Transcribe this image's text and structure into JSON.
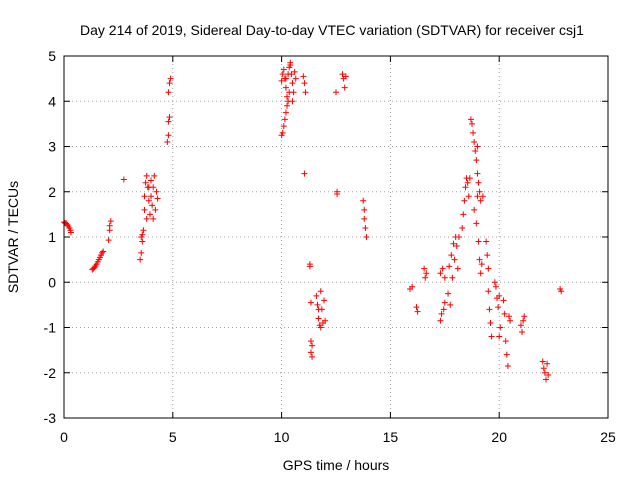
{
  "chart_data": {
    "type": "scatter",
    "title": "Day 214 of 2019, Sidereal Day-to-day VTEC variation (SDTVAR) for receiver csj1",
    "xlabel": "GPS time / hours",
    "ylabel": "SDTVAR / TECUs",
    "xlim": [
      0,
      25
    ],
    "ylim": [
      -3,
      5
    ],
    "xticks": [
      "0",
      "5",
      "10",
      "15",
      "20",
      "25"
    ],
    "yticks": [
      "-3",
      "-2",
      "-1",
      "0",
      "1",
      "2",
      "3",
      "4",
      "5"
    ],
    "grid": true,
    "marker": "+",
    "color": "#ff0000",
    "series": [
      {
        "name": "csj1",
        "points": [
          [
            0.0,
            1.33
          ],
          [
            0.05,
            1.31
          ],
          [
            0.1,
            1.3
          ],
          [
            0.15,
            1.27
          ],
          [
            0.2,
            1.24
          ],
          [
            0.25,
            1.2
          ],
          [
            0.3,
            1.15
          ],
          [
            0.32,
            1.1
          ],
          [
            1.3,
            0.28
          ],
          [
            1.35,
            0.3
          ],
          [
            1.4,
            0.33
          ],
          [
            1.45,
            0.36
          ],
          [
            1.5,
            0.4
          ],
          [
            1.55,
            0.45
          ],
          [
            1.6,
            0.5
          ],
          [
            1.65,
            0.55
          ],
          [
            1.7,
            0.6
          ],
          [
            1.75,
            0.65
          ],
          [
            1.8,
            0.68
          ],
          [
            2.05,
            0.93
          ],
          [
            2.1,
            1.15
          ],
          [
            2.1,
            1.25
          ],
          [
            2.15,
            1.35
          ],
          [
            2.75,
            2.27
          ],
          [
            3.5,
            0.5
          ],
          [
            3.55,
            0.65
          ],
          [
            3.6,
            0.9
          ],
          [
            3.6,
            1.05
          ],
          [
            3.65,
            1.15
          ],
          [
            3.55,
            1.0
          ],
          [
            3.7,
            1.6
          ],
          [
            3.7,
            1.9
          ],
          [
            3.75,
            2.2
          ],
          [
            3.8,
            2.35
          ],
          [
            3.85,
            2.1
          ],
          [
            3.9,
            1.8
          ],
          [
            3.95,
            1.5
          ],
          [
            4.0,
            1.9
          ],
          [
            4.0,
            2.25
          ],
          [
            4.05,
            1.7
          ],
          [
            4.1,
            1.4
          ],
          [
            4.1,
            2.1
          ],
          [
            4.15,
            2.35
          ],
          [
            4.2,
            1.6
          ],
          [
            4.25,
            2.0
          ],
          [
            4.3,
            1.85
          ],
          [
            3.8,
            1.4
          ],
          [
            3.9,
            2.1
          ],
          [
            4.75,
            3.1
          ],
          [
            4.8,
            3.25
          ],
          [
            4.8,
            3.55
          ],
          [
            4.85,
            3.65
          ],
          [
            4.8,
            4.2
          ],
          [
            4.85,
            4.4
          ],
          [
            4.9,
            4.5
          ],
          [
            10.0,
            3.25
          ],
          [
            10.05,
            3.3
          ],
          [
            10.1,
            3.45
          ],
          [
            10.15,
            3.6
          ],
          [
            10.2,
            3.75
          ],
          [
            10.25,
            3.9
          ],
          [
            10.3,
            4.0
          ],
          [
            10.35,
            4.2
          ],
          [
            10.0,
            4.45
          ],
          [
            10.05,
            4.6
          ],
          [
            10.1,
            4.7
          ],
          [
            10.15,
            4.5
          ],
          [
            10.2,
            4.3
          ],
          [
            10.25,
            4.1
          ],
          [
            10.3,
            4.6
          ],
          [
            10.35,
            4.75
          ],
          [
            10.4,
            4.8
          ],
          [
            10.45,
            4.6
          ],
          [
            10.5,
            4.4
          ],
          [
            10.55,
            4.2
          ],
          [
            10.5,
            4.0
          ],
          [
            10.6,
            4.65
          ],
          [
            10.65,
            4.5
          ],
          [
            10.4,
            4.85
          ],
          [
            10.2,
            4.5
          ],
          [
            11.0,
            4.55
          ],
          [
            11.05,
            4.4
          ],
          [
            11.1,
            4.2
          ],
          [
            11.05,
            2.4
          ],
          [
            11.3,
            0.35
          ],
          [
            11.3,
            0.4
          ],
          [
            11.35,
            -0.45
          ],
          [
            11.35,
            -1.3
          ],
          [
            11.35,
            -1.55
          ],
          [
            11.4,
            -1.65
          ],
          [
            11.4,
            -1.4
          ],
          [
            11.6,
            -0.3
          ],
          [
            11.65,
            -0.5
          ],
          [
            11.7,
            -0.8
          ],
          [
            11.75,
            -0.95
          ],
          [
            11.8,
            -0.2
          ],
          [
            11.85,
            -0.6
          ],
          [
            11.9,
            -0.9
          ],
          [
            11.95,
            -0.4
          ],
          [
            12.0,
            -0.85
          ],
          [
            11.7,
            -0.6
          ],
          [
            11.8,
            -1.0
          ],
          [
            12.5,
            4.2
          ],
          [
            12.55,
            2.0
          ],
          [
            12.55,
            1.95
          ],
          [
            12.8,
            4.6
          ],
          [
            12.85,
            4.5
          ],
          [
            12.9,
            4.3
          ],
          [
            12.95,
            4.55
          ],
          [
            13.75,
            1.8
          ],
          [
            13.8,
            1.6
          ],
          [
            13.8,
            1.4
          ],
          [
            13.85,
            1.2
          ],
          [
            13.9,
            1.0
          ],
          [
            15.9,
            -0.15
          ],
          [
            16.0,
            -0.1
          ],
          [
            16.2,
            -0.55
          ],
          [
            16.25,
            -0.65
          ],
          [
            16.55,
            0.3
          ],
          [
            16.6,
            0.1
          ],
          [
            16.65,
            0.2
          ],
          [
            17.3,
            0.2
          ],
          [
            17.3,
            -0.85
          ],
          [
            17.35,
            -0.7
          ],
          [
            17.4,
            0.3
          ],
          [
            17.45,
            -0.6
          ],
          [
            17.5,
            0.1
          ],
          [
            17.5,
            -0.45
          ],
          [
            17.65,
            -0.25
          ],
          [
            17.7,
            0.35
          ],
          [
            17.75,
            -0.5
          ],
          [
            17.8,
            0.6
          ],
          [
            17.85,
            0.1
          ],
          [
            17.9,
            0.85
          ],
          [
            17.95,
            0.5
          ],
          [
            18.0,
            1.0
          ],
          [
            18.05,
            0.8
          ],
          [
            18.1,
            0.3
          ],
          [
            18.15,
            1.0
          ],
          [
            18.3,
            1.2
          ],
          [
            18.35,
            1.5
          ],
          [
            18.4,
            1.8
          ],
          [
            18.45,
            2.1
          ],
          [
            18.5,
            2.3
          ],
          [
            18.55,
            2.2
          ],
          [
            18.6,
            1.9
          ],
          [
            18.65,
            2.3
          ],
          [
            18.7,
            3.6
          ],
          [
            18.75,
            3.5
          ],
          [
            18.8,
            3.3
          ],
          [
            18.85,
            3.1
          ],
          [
            18.9,
            2.9
          ],
          [
            18.95,
            2.7
          ],
          [
            19.0,
            2.4
          ],
          [
            19.05,
            2.2
          ],
          [
            19.1,
            2.0
          ],
          [
            19.15,
            1.8
          ],
          [
            19.0,
            3.0
          ],
          [
            18.85,
            1.6
          ],
          [
            18.95,
            1.3
          ],
          [
            19.05,
            0.9
          ],
          [
            19.1,
            0.5
          ],
          [
            19.15,
            0.2
          ],
          [
            19.2,
            0.4
          ],
          [
            19.25,
            1.9
          ],
          [
            19.0,
            1.9
          ],
          [
            19.4,
            0.9
          ],
          [
            19.45,
            0.6
          ],
          [
            19.5,
            0.3
          ],
          [
            19.55,
            -0.6
          ],
          [
            19.6,
            -0.9
          ],
          [
            19.65,
            -1.2
          ],
          [
            19.5,
            -0.2
          ],
          [
            19.8,
            0.0
          ],
          [
            19.85,
            -0.1
          ],
          [
            19.9,
            -0.35
          ],
          [
            19.95,
            -0.55
          ],
          [
            20.0,
            -0.3
          ],
          [
            20.05,
            -1.0
          ],
          [
            20.0,
            -1.2
          ],
          [
            20.2,
            -0.4
          ],
          [
            20.25,
            -0.7
          ],
          [
            20.3,
            -1.3
          ],
          [
            20.35,
            -1.6
          ],
          [
            20.4,
            -1.85
          ],
          [
            20.45,
            -0.75
          ],
          [
            20.5,
            -0.85
          ],
          [
            21.0,
            -0.95
          ],
          [
            21.05,
            -1.1
          ],
          [
            21.1,
            -0.85
          ],
          [
            21.15,
            -0.75
          ],
          [
            22.0,
            -1.75
          ],
          [
            22.05,
            -1.9
          ],
          [
            22.1,
            -2.0
          ],
          [
            22.15,
            -2.15
          ],
          [
            22.2,
            -1.8
          ],
          [
            22.25,
            -2.05
          ],
          [
            22.8,
            -0.15
          ],
          [
            22.85,
            -0.2
          ]
        ]
      }
    ]
  }
}
